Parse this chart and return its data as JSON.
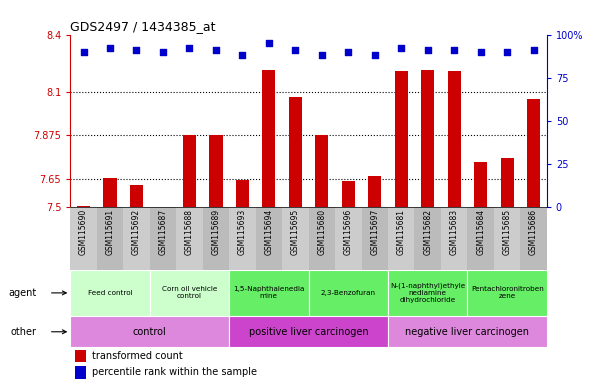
{
  "title": "GDS2497 / 1434385_at",
  "samples": [
    "GSM115690",
    "GSM115691",
    "GSM115692",
    "GSM115687",
    "GSM115688",
    "GSM115689",
    "GSM115693",
    "GSM115694",
    "GSM115695",
    "GSM115680",
    "GSM115696",
    "GSM115697",
    "GSM115681",
    "GSM115682",
    "GSM115683",
    "GSM115684",
    "GSM115685",
    "GSM115686"
  ],
  "transformed_counts": [
    7.505,
    7.655,
    7.615,
    7.502,
    7.875,
    7.875,
    7.645,
    8.215,
    8.075,
    7.875,
    7.635,
    7.665,
    8.21,
    8.215,
    8.21,
    7.735,
    7.755,
    8.065
  ],
  "percentile_ranks": [
    90,
    92,
    91,
    90,
    92,
    91,
    88,
    95,
    91,
    88,
    90,
    88,
    92,
    91,
    91,
    90,
    90,
    91
  ],
  "ylim_left": [
    7.5,
    8.4
  ],
  "ylim_right": [
    0,
    100
  ],
  "yticks_left": [
    7.5,
    7.65,
    7.875,
    8.1,
    8.4
  ],
  "yticks_right": [
    0,
    25,
    50,
    75,
    100
  ],
  "bar_color": "#cc0000",
  "dot_color": "#0000cc",
  "agent_groups": [
    {
      "label": "Feed control",
      "start": 0,
      "end": 3,
      "color": "#ccffcc"
    },
    {
      "label": "Corn oil vehicle\ncontrol",
      "start": 3,
      "end": 6,
      "color": "#ccffcc"
    },
    {
      "label": "1,5-Naphthalenedia\nmine",
      "start": 6,
      "end": 9,
      "color": "#66ee66"
    },
    {
      "label": "2,3-Benzofuran",
      "start": 9,
      "end": 12,
      "color": "#66ee66"
    },
    {
      "label": "N-(1-naphthyl)ethyle\nnediamine\ndihydrochloride",
      "start": 12,
      "end": 15,
      "color": "#66ee66"
    },
    {
      "label": "Pentachloronitroben\nzene",
      "start": 15,
      "end": 18,
      "color": "#66ee66"
    }
  ],
  "other_groups": [
    {
      "label": "control",
      "start": 0,
      "end": 6,
      "color": "#dd88dd"
    },
    {
      "label": "positive liver carcinogen",
      "start": 6,
      "end": 12,
      "color": "#cc44cc"
    },
    {
      "label": "negative liver carcinogen",
      "start": 12,
      "end": 18,
      "color": "#dd88dd"
    }
  ],
  "legend_items": [
    {
      "label": "transformed count",
      "color": "#cc0000"
    },
    {
      "label": "percentile rank within the sample",
      "color": "#0000cc"
    }
  ],
  "background_color": "#ffffff",
  "sample_bg_color": "#cccccc",
  "tick_color_left": "#cc0000",
  "tick_color_right": "#0000cc",
  "hline_values": [
    7.65,
    7.875,
    8.1
  ]
}
